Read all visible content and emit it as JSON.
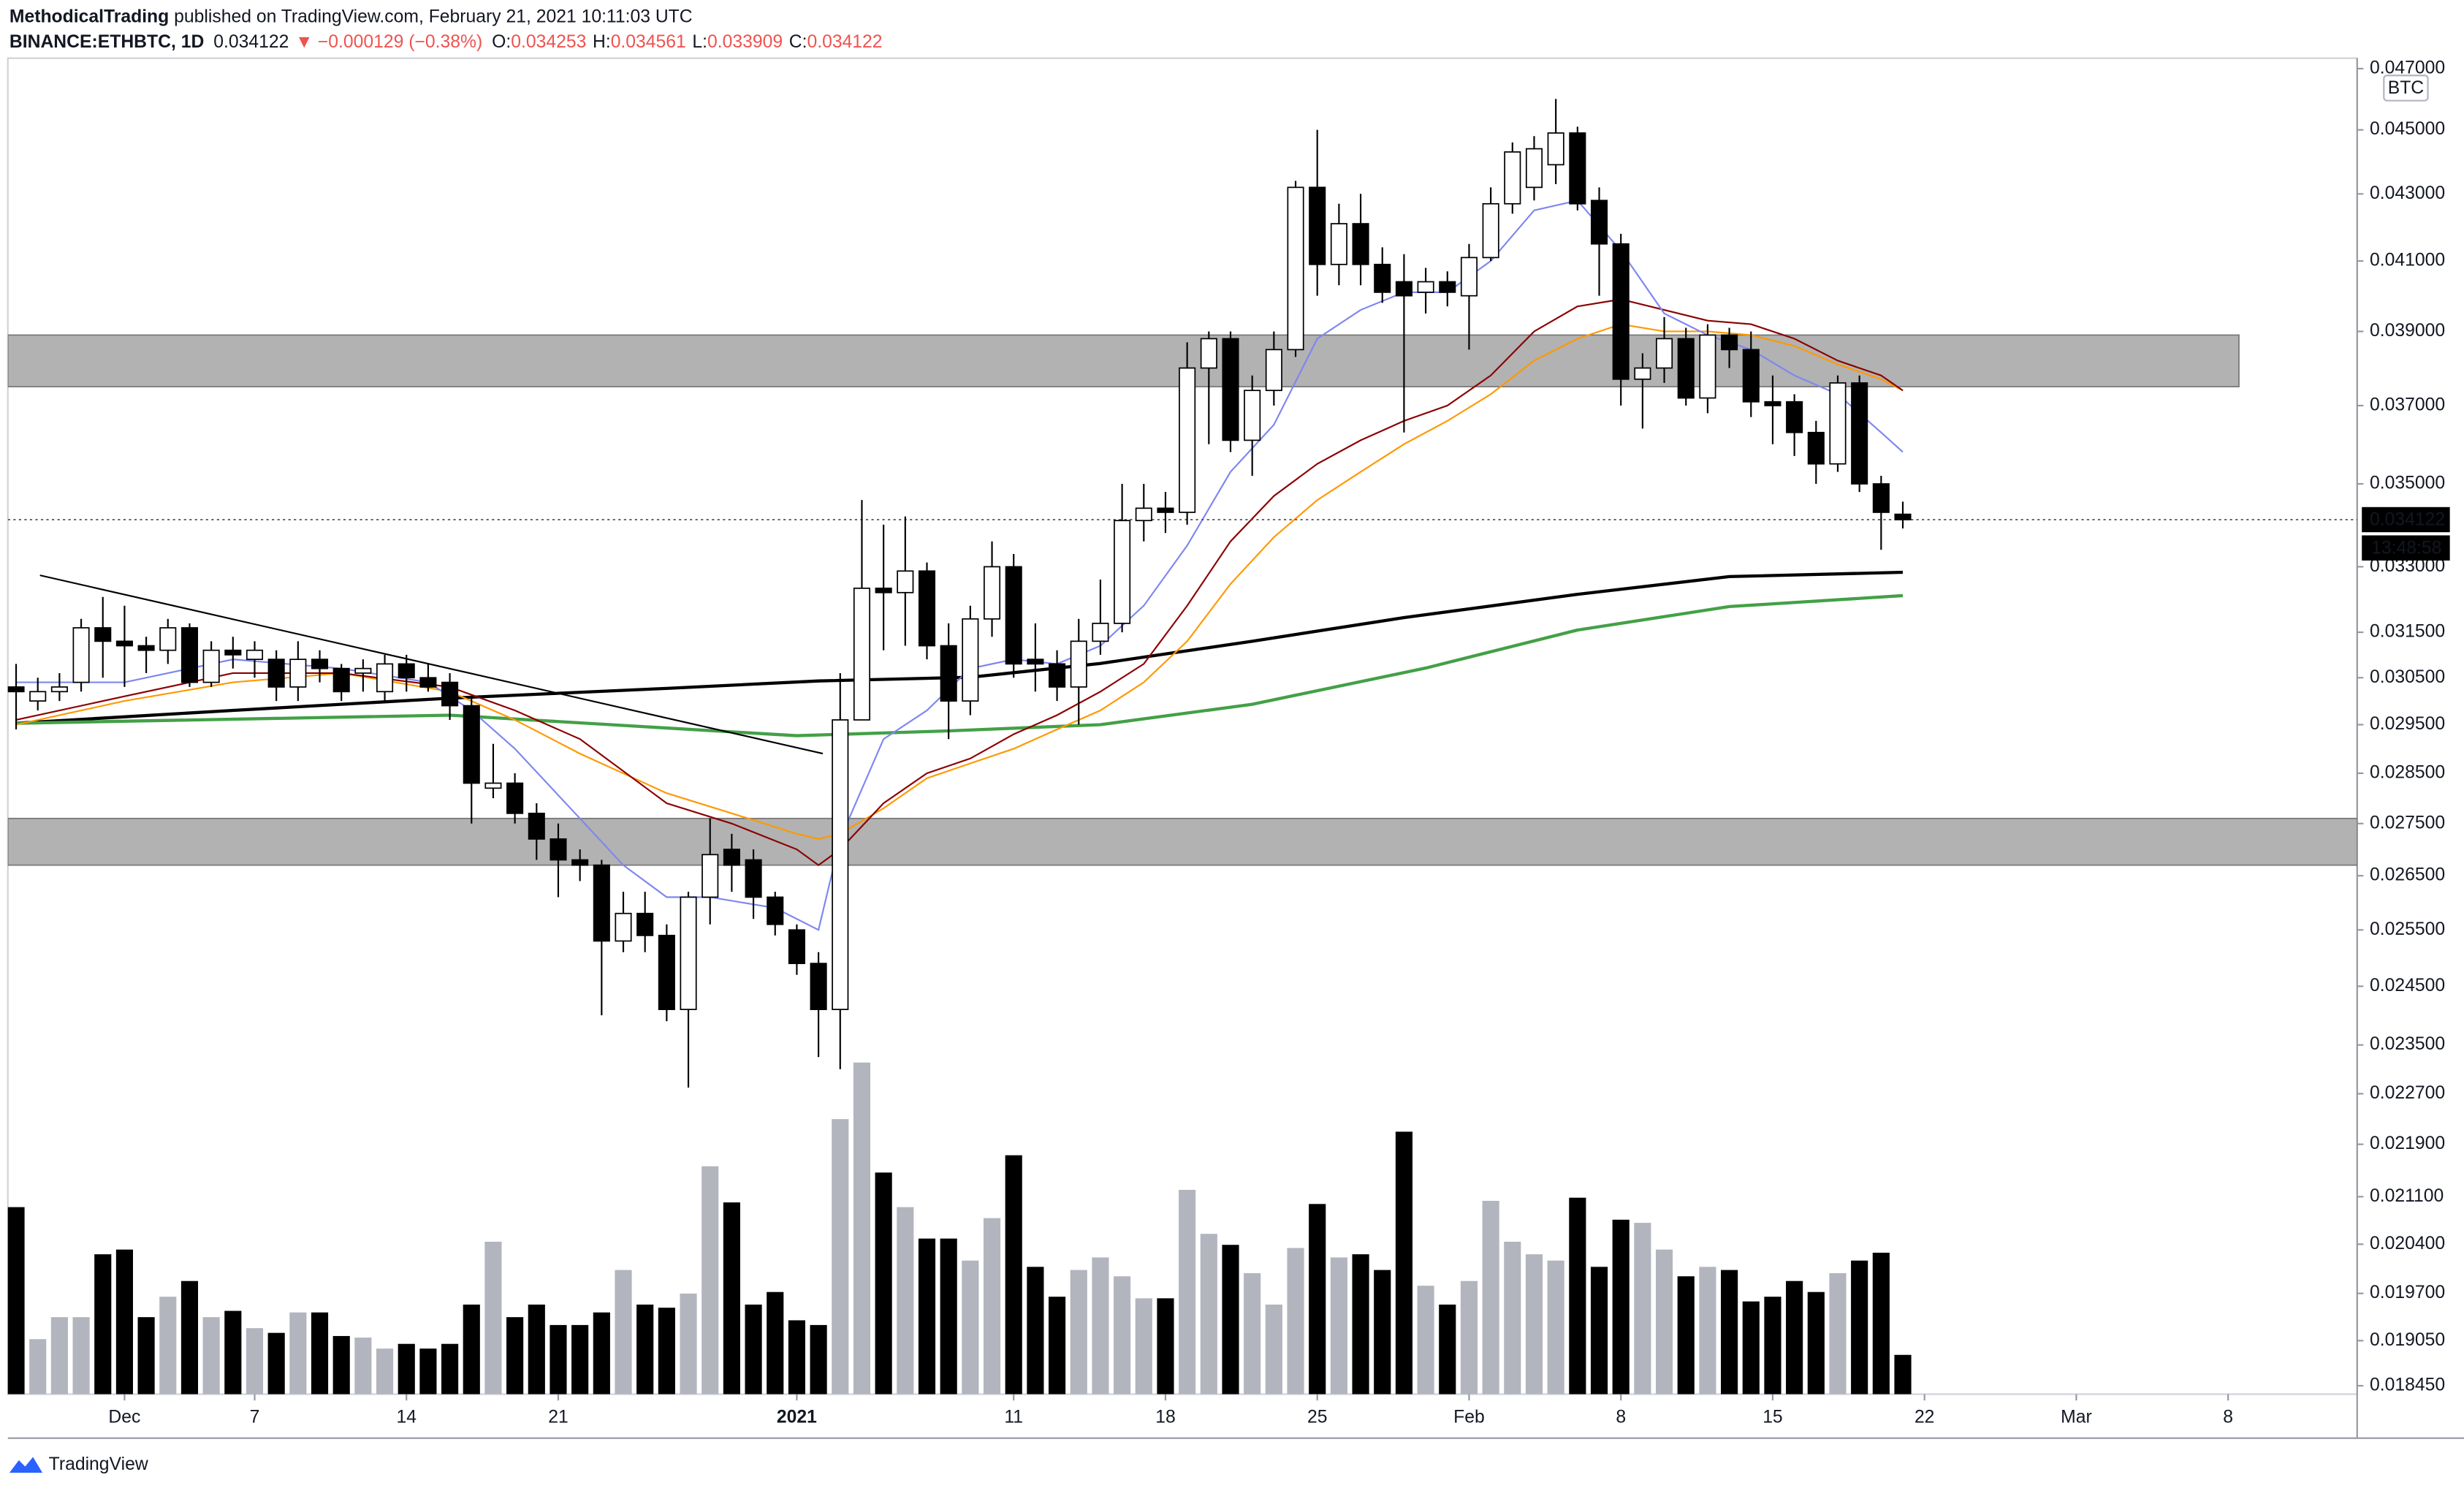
{
  "header": {
    "author": "MethodicalTrading",
    "published": " published on TradingView.com, February 21, 2021 10:11:03 UTC",
    "symbol": "BINANCE:ETHBTC, 1D",
    "last": "0.034122",
    "arrow": "▼",
    "change": "−0.000129 (−0.38%)",
    "ohlc": [
      {
        "label": "O:",
        "value": "0.034253"
      },
      {
        "label": "H:",
        "value": "0.034561"
      },
      {
        "label": "L:",
        "value": "0.033909"
      },
      {
        "label": "C:",
        "value": "0.034122"
      }
    ]
  },
  "footer": {
    "logo": "TradingView"
  },
  "chart_data": {
    "type": "candlestick",
    "log_scale": true,
    "grid": false,
    "currency": "BTC",
    "ylim": [
      0.01834,
      0.04735
    ],
    "yticks": [
      {
        "value": 0.047,
        "label": "0.047000"
      },
      {
        "value": 0.045,
        "label": "0.045000"
      },
      {
        "value": 0.043,
        "label": "0.043000"
      },
      {
        "value": 0.041,
        "label": "0.041000"
      },
      {
        "value": 0.039,
        "label": "0.039000"
      },
      {
        "value": 0.037,
        "label": "0.037000"
      },
      {
        "value": 0.035,
        "label": "0.035000"
      },
      {
        "value": 0.033,
        "label": "0.033000"
      },
      {
        "value": 0.0315,
        "label": "0.031500"
      },
      {
        "value": 0.0305,
        "label": "0.030500"
      },
      {
        "value": 0.0295,
        "label": "0.029500"
      },
      {
        "value": 0.0285,
        "label": "0.028500"
      },
      {
        "value": 0.0275,
        "label": "0.027500"
      },
      {
        "value": 0.0265,
        "label": "0.026500"
      },
      {
        "value": 0.0255,
        "label": "0.025500"
      },
      {
        "value": 0.0245,
        "label": "0.024500"
      },
      {
        "value": 0.0235,
        "label": "0.023500"
      },
      {
        "value": 0.0227,
        "label": "0.022700"
      },
      {
        "value": 0.0219,
        "label": "0.021900"
      },
      {
        "value": 0.0211,
        "label": "0.021100"
      },
      {
        "value": 0.0204,
        "label": "0.020400"
      },
      {
        "value": 0.0197,
        "label": "0.019700"
      },
      {
        "value": 0.01905,
        "label": "0.019050"
      },
      {
        "value": 0.01845,
        "label": "0.018450"
      }
    ],
    "xlim": [
      -0.38,
      107.95
    ],
    "xticks": [
      {
        "value": 5,
        "label": "Dec"
      },
      {
        "value": 11,
        "label": "7"
      },
      {
        "value": 18,
        "label": "14"
      },
      {
        "value": 25,
        "label": "21"
      },
      {
        "value": 36,
        "label": "2021"
      },
      {
        "value": 46,
        "label": "11"
      },
      {
        "value": 53,
        "label": "18"
      },
      {
        "value": 60,
        "label": "25"
      },
      {
        "value": 67,
        "label": "Feb"
      },
      {
        "value": 74,
        "label": "8"
      },
      {
        "value": 81,
        "label": "15"
      },
      {
        "value": 88,
        "label": "22"
      },
      {
        "value": 95,
        "label": "Mar"
      },
      {
        "value": 102,
        "label": "8"
      }
    ],
    "x": [
      0,
      1,
      2,
      3,
      4,
      5,
      6,
      7,
      8,
      9,
      10,
      11,
      12,
      13,
      14,
      15,
      16,
      17,
      18,
      19,
      20,
      21,
      22,
      23,
      24,
      25,
      26,
      27,
      28,
      29,
      30,
      31,
      32,
      33,
      34,
      35,
      36,
      37,
      38,
      39,
      40,
      41,
      42,
      43,
      44,
      45,
      46,
      47,
      48,
      49,
      50,
      51,
      52,
      53,
      54,
      55,
      56,
      57,
      58,
      59,
      60,
      61,
      62,
      63,
      64,
      65,
      66,
      67,
      68,
      69,
      70,
      71,
      72,
      73,
      74,
      75,
      76,
      77,
      78,
      79,
      80,
      81,
      82,
      83,
      84,
      85,
      86,
      87
    ],
    "open": [
      0.0303,
      0.03,
      0.0302,
      0.0304,
      0.0316,
      0.0313,
      0.0312,
      0.0311,
      0.0316,
      0.0304,
      0.0311,
      0.0309,
      0.0309,
      0.0303,
      0.0309,
      0.0307,
      0.0306,
      0.0302,
      0.0308,
      0.0305,
      0.0304,
      0.0299,
      0.0282,
      0.0283,
      0.0277,
      0.0272,
      0.0268,
      0.0267,
      0.0253,
      0.0258,
      0.0254,
      0.0241,
      0.0261,
      0.027,
      0.0268,
      0.0261,
      0.0255,
      0.0249,
      0.0241,
      0.0296,
      0.0325,
      0.0324,
      0.0329,
      0.0312,
      0.03,
      0.0318,
      0.033,
      0.0309,
      0.0308,
      0.0303,
      0.0313,
      0.0317,
      0.0341,
      0.0344,
      0.0343,
      0.038,
      0.0388,
      0.0361,
      0.0374,
      0.0385,
      0.0432,
      0.0409,
      0.0421,
      0.0409,
      0.0404,
      0.0401,
      0.0404,
      0.04,
      0.0411,
      0.0427,
      0.0432,
      0.0439,
      0.0449,
      0.0428,
      0.0415,
      0.0377,
      0.038,
      0.0388,
      0.0372,
      0.0389,
      0.0385,
      0.0371,
      0.0371,
      0.0363,
      0.0355,
      0.0376,
      0.035,
      0.034253
    ],
    "high": [
      0.0308,
      0.0305,
      0.0306,
      0.0318,
      0.0323,
      0.0321,
      0.0314,
      0.0318,
      0.0317,
      0.0313,
      0.0314,
      0.0313,
      0.0311,
      0.0313,
      0.0311,
      0.0308,
      0.0309,
      0.031,
      0.031,
      0.0308,
      0.0306,
      0.0301,
      0.0291,
      0.0285,
      0.0279,
      0.0275,
      0.027,
      0.0268,
      0.0262,
      0.0262,
      0.0256,
      0.0262,
      0.0276,
      0.0273,
      0.027,
      0.0262,
      0.0256,
      0.0251,
      0.0306,
      0.0346,
      0.034,
      0.0342,
      0.0331,
      0.0317,
      0.0321,
      0.0336,
      0.0333,
      0.0317,
      0.0311,
      0.0318,
      0.0327,
      0.035,
      0.035,
      0.0348,
      0.0387,
      0.039,
      0.039,
      0.0378,
      0.039,
      0.0434,
      0.045,
      0.0427,
      0.043,
      0.0414,
      0.0412,
      0.0408,
      0.0407,
      0.0415,
      0.0432,
      0.0446,
      0.0448,
      0.046,
      0.0451,
      0.0432,
      0.0418,
      0.0384,
      0.0394,
      0.0391,
      0.0392,
      0.0391,
      0.039,
      0.0378,
      0.0373,
      0.0366,
      0.0378,
      0.0378,
      0.0352,
      0.034561
    ],
    "low": [
      0.0294,
      0.0298,
      0.03,
      0.0302,
      0.0305,
      0.0303,
      0.0306,
      0.0308,
      0.0303,
      0.0303,
      0.0307,
      0.0305,
      0.03,
      0.03,
      0.0304,
      0.03,
      0.0302,
      0.03,
      0.0302,
      0.0302,
      0.0296,
      0.0275,
      0.028,
      0.0275,
      0.0268,
      0.0261,
      0.0264,
      0.024,
      0.0251,
      0.0251,
      0.0239,
      0.0228,
      0.0256,
      0.0262,
      0.0257,
      0.0254,
      0.0247,
      0.0233,
      0.0231,
      0.0296,
      0.0311,
      0.0312,
      0.0309,
      0.0292,
      0.0297,
      0.0314,
      0.0305,
      0.0302,
      0.03,
      0.0295,
      0.031,
      0.0315,
      0.0336,
      0.0338,
      0.034,
      0.036,
      0.0358,
      0.0352,
      0.037,
      0.0383,
      0.04,
      0.0403,
      0.0403,
      0.0398,
      0.0363,
      0.0395,
      0.0397,
      0.0385,
      0.041,
      0.0424,
      0.0428,
      0.0433,
      0.0425,
      0.04,
      0.037,
      0.0364,
      0.0376,
      0.037,
      0.0368,
      0.038,
      0.0367,
      0.036,
      0.0357,
      0.035,
      0.0353,
      0.0348,
      0.0334,
      0.033909
    ],
    "close": [
      0.0302,
      0.0302,
      0.0303,
      0.0316,
      0.0313,
      0.0312,
      0.0311,
      0.0316,
      0.0304,
      0.0311,
      0.031,
      0.0311,
      0.0303,
      0.0309,
      0.0307,
      0.0302,
      0.0307,
      0.0308,
      0.0305,
      0.0303,
      0.0299,
      0.0283,
      0.0283,
      0.0277,
      0.0272,
      0.0268,
      0.0267,
      0.0253,
      0.0258,
      0.0254,
      0.0241,
      0.0261,
      0.0269,
      0.0267,
      0.0261,
      0.0256,
      0.0249,
      0.0241,
      0.0296,
      0.0325,
      0.0324,
      0.0329,
      0.0312,
      0.03,
      0.0318,
      0.033,
      0.0308,
      0.0308,
      0.0303,
      0.0313,
      0.0317,
      0.0341,
      0.0344,
      0.0343,
      0.038,
      0.0388,
      0.0361,
      0.0374,
      0.0385,
      0.0432,
      0.0409,
      0.0421,
      0.0409,
      0.0401,
      0.04,
      0.0404,
      0.0401,
      0.0411,
      0.0427,
      0.0443,
      0.0444,
      0.0449,
      0.0427,
      0.0415,
      0.0377,
      0.038,
      0.0388,
      0.0372,
      0.0389,
      0.0385,
      0.0371,
      0.037,
      0.0363,
      0.0355,
      0.0376,
      0.035,
      0.0343,
      0.034122
    ],
    "volume": [
      119,
      35,
      49,
      49,
      89,
      92,
      49,
      62,
      72,
      49,
      53,
      42,
      39,
      52,
      52,
      37,
      36,
      29,
      32,
      29,
      32,
      57,
      97,
      49,
      57,
      44,
      44,
      52,
      79,
      57,
      55,
      64,
      145,
      122,
      57,
      65,
      47,
      44,
      175,
      211,
      141,
      119,
      99,
      99,
      85,
      112,
      152,
      81,
      62,
      79,
      87,
      75,
      61,
      61,
      130,
      102,
      95,
      77,
      57,
      93,
      121,
      87,
      89,
      79,
      167,
      69,
      57,
      72,
      123,
      97,
      89,
      85,
      125,
      81,
      111,
      109,
      92,
      75,
      81,
      79,
      59,
      62,
      72,
      65,
      77,
      85,
      90,
      25
    ],
    "up_color": "#ffffff",
    "down_color": "#000000",
    "volume_up_color": "#b2b5be",
    "volume_down_color": "#000000",
    "overlays": [
      {
        "color": "#000000",
        "width": 2,
        "x": [
          0,
          10,
          20,
          30,
          37,
          44,
          50,
          57,
          64,
          72,
          79,
          87
        ],
        "values": [
          0.02953,
          0.0298,
          0.03006,
          0.03027,
          0.03043,
          0.03051,
          0.03081,
          0.0313,
          0.03183,
          0.03236,
          0.03277,
          0.03287
        ]
      },
      {
        "color": "#43a047",
        "width": 2,
        "x": [
          0,
          20,
          36,
          43,
          50,
          57,
          65,
          72,
          79,
          87
        ],
        "values": [
          0.02953,
          0.0297,
          0.02927,
          0.02937,
          0.0295,
          0.02993,
          0.03071,
          0.03155,
          0.03208,
          0.03233
        ]
      },
      {
        "color": "#ff9800",
        "width": 1,
        "x": [
          0,
          5,
          10,
          15,
          20,
          23,
          26,
          30,
          33,
          36,
          37,
          38,
          40,
          42,
          44,
          46,
          48,
          50,
          52,
          54,
          56,
          58,
          60,
          62,
          64,
          66,
          68,
          70,
          72,
          74,
          76,
          78,
          80,
          82,
          84,
          86,
          87
        ],
        "values": [
          0.0295,
          0.03,
          0.0304,
          0.0306,
          0.0302,
          0.0296,
          0.0289,
          0.0281,
          0.0277,
          0.0273,
          0.0272,
          0.0273,
          0.0278,
          0.0284,
          0.0287,
          0.029,
          0.0294,
          0.0298,
          0.0304,
          0.0313,
          0.0326,
          0.0337,
          0.0346,
          0.0353,
          0.036,
          0.0366,
          0.0373,
          0.0382,
          0.0388,
          0.0392,
          0.039,
          0.039,
          0.0389,
          0.0386,
          0.0381,
          0.0377,
          0.0374
        ]
      },
      {
        "color": "#8b0000",
        "width": 1,
        "x": [
          0,
          5,
          10,
          15,
          20,
          23,
          26,
          30,
          33,
          36,
          37,
          38,
          40,
          42,
          44,
          46,
          48,
          50,
          52,
          54,
          56,
          58,
          60,
          62,
          64,
          66,
          68,
          70,
          72,
          74,
          76,
          78,
          80,
          82,
          84,
          86,
          87
        ],
        "values": [
          0.0296,
          0.0301,
          0.0306,
          0.0306,
          0.0303,
          0.0298,
          0.0292,
          0.0279,
          0.0275,
          0.027,
          0.0267,
          0.027,
          0.0279,
          0.0285,
          0.0288,
          0.0293,
          0.0297,
          0.0302,
          0.0308,
          0.0321,
          0.0336,
          0.0347,
          0.0355,
          0.0361,
          0.0366,
          0.037,
          0.0378,
          0.039,
          0.0397,
          0.0399,
          0.0396,
          0.0393,
          0.0392,
          0.0388,
          0.0382,
          0.0378,
          0.0374
        ]
      },
      {
        "color": "#7e86f0",
        "width": 1,
        "x": [
          0,
          5,
          10,
          15,
          19,
          21,
          23,
          26,
          28,
          30,
          32,
          35,
          37,
          38,
          40,
          42,
          44,
          46,
          48,
          50,
          52,
          54,
          56,
          58,
          60,
          62,
          64,
          66,
          68,
          70,
          72,
          74,
          76,
          78,
          80,
          82,
          84,
          86,
          87
        ],
        "values": [
          0.0304,
          0.0304,
          0.0309,
          0.0307,
          0.0304,
          0.0298,
          0.029,
          0.0276,
          0.0267,
          0.0261,
          0.0261,
          0.0259,
          0.0255,
          0.0272,
          0.0292,
          0.0298,
          0.0307,
          0.0309,
          0.0308,
          0.0312,
          0.0321,
          0.0335,
          0.0353,
          0.0365,
          0.0388,
          0.0396,
          0.0401,
          0.0401,
          0.041,
          0.0425,
          0.0428,
          0.0413,
          0.0395,
          0.0389,
          0.0385,
          0.0378,
          0.0373,
          0.0363,
          0.0358
        ]
      }
    ],
    "zones": [
      {
        "top": 0.0389,
        "bottom": 0.0375,
        "x": [
          -0.38,
          102.5
        ],
        "color": "#b2b2b2"
      },
      {
        "top": 0.0276,
        "bottom": 0.0267,
        "x": [
          -0.38,
          107.95
        ],
        "color": "#b2b2b2"
      }
    ],
    "trendline": {
      "x": [
        1.1,
        37.2
      ],
      "values": [
        0.0328,
        0.0289
      ],
      "color": "#000000"
    },
    "last_price": 0.034122,
    "last_price_label": "0.034122",
    "countdown": "13:48:58"
  }
}
